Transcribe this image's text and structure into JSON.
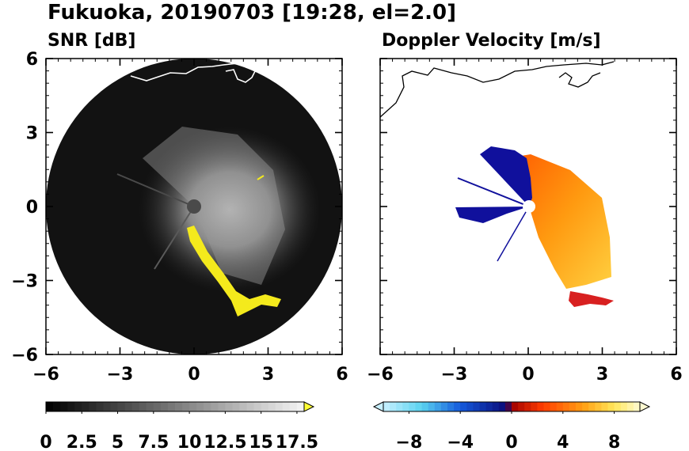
{
  "figure": {
    "title": "Fukuoka, 20190703 [19:28, el=2.0]"
  },
  "chart_data": [
    {
      "type": "heatmap",
      "title": "SNR [dB]",
      "xlabel": "",
      "ylabel": "",
      "xlim": [
        -6,
        6
      ],
      "ylim": [
        -6,
        6
      ],
      "x_ticks": [
        -6,
        -3,
        0,
        3,
        6
      ],
      "y_ticks": [
        6,
        3,
        0,
        -3,
        -6
      ],
      "x_tick_labels": [
        "−6",
        "−3",
        "0",
        "3",
        "6"
      ],
      "y_tick_labels": [
        "6",
        "3",
        "0",
        "−3",
        "−6"
      ],
      "colorbar": {
        "min": 0,
        "max": 18,
        "extend": "max",
        "extend_color": "#ffff33",
        "colormap": "greys",
        "ticks": [
          0,
          2.5,
          5,
          7.5,
          10,
          12.5,
          15,
          17.5
        ],
        "tick_labels": [
          "0",
          "2.5",
          "5",
          "7.5",
          "10",
          "12.5",
          "15",
          "17.5"
        ]
      }
    },
    {
      "type": "heatmap",
      "title": "Doppler Velocity [m/s]",
      "xlabel": "",
      "ylabel": "",
      "xlim": [
        -6,
        6
      ],
      "ylim": [
        -6,
        6
      ],
      "x_ticks": [
        -6,
        -3,
        0,
        3,
        6
      ],
      "y_ticks": [
        6,
        3,
        0,
        -3,
        -6
      ],
      "x_tick_labels": [
        "−6",
        "−3",
        "0",
        "3",
        "6"
      ],
      "colorbar": {
        "min": -10,
        "max": 10,
        "extend": "both",
        "colormap": "blue-white-red-yellow diverging",
        "ticks": [
          -8,
          -4,
          0,
          4,
          8
        ],
        "tick_labels": [
          "−8",
          "−4",
          "0",
          "4",
          "8"
        ]
      }
    }
  ]
}
